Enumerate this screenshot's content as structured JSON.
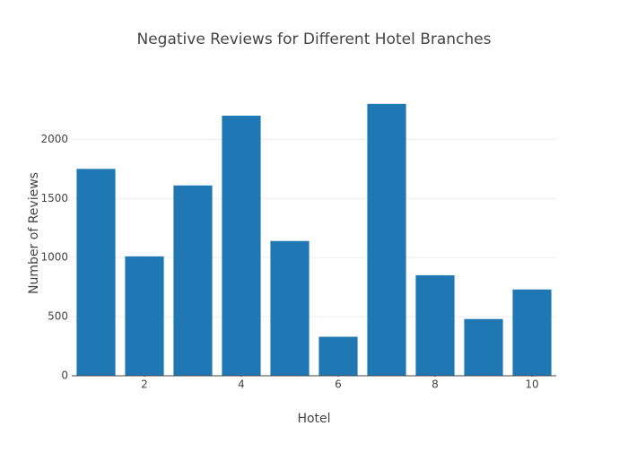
{
  "chart_data": {
    "type": "bar",
    "title": "Negative Reviews for Different Hotel Branches",
    "x_label": "Hotel",
    "y_label": "Number of Reviews",
    "x": [
      1,
      2,
      3,
      4,
      5,
      6,
      7,
      8,
      9,
      10
    ],
    "values": [
      1750,
      1010,
      1610,
      2200,
      1140,
      330,
      2300,
      850,
      480,
      730
    ],
    "color": "#1f77b4",
    "xlim": [
      0.5,
      10.5
    ],
    "xticks": [
      2,
      4,
      6,
      8,
      10
    ],
    "ylim": [
      0,
      2420
    ],
    "yticks": [
      0,
      500,
      1000,
      1500,
      2000
    ],
    "grid": true
  }
}
